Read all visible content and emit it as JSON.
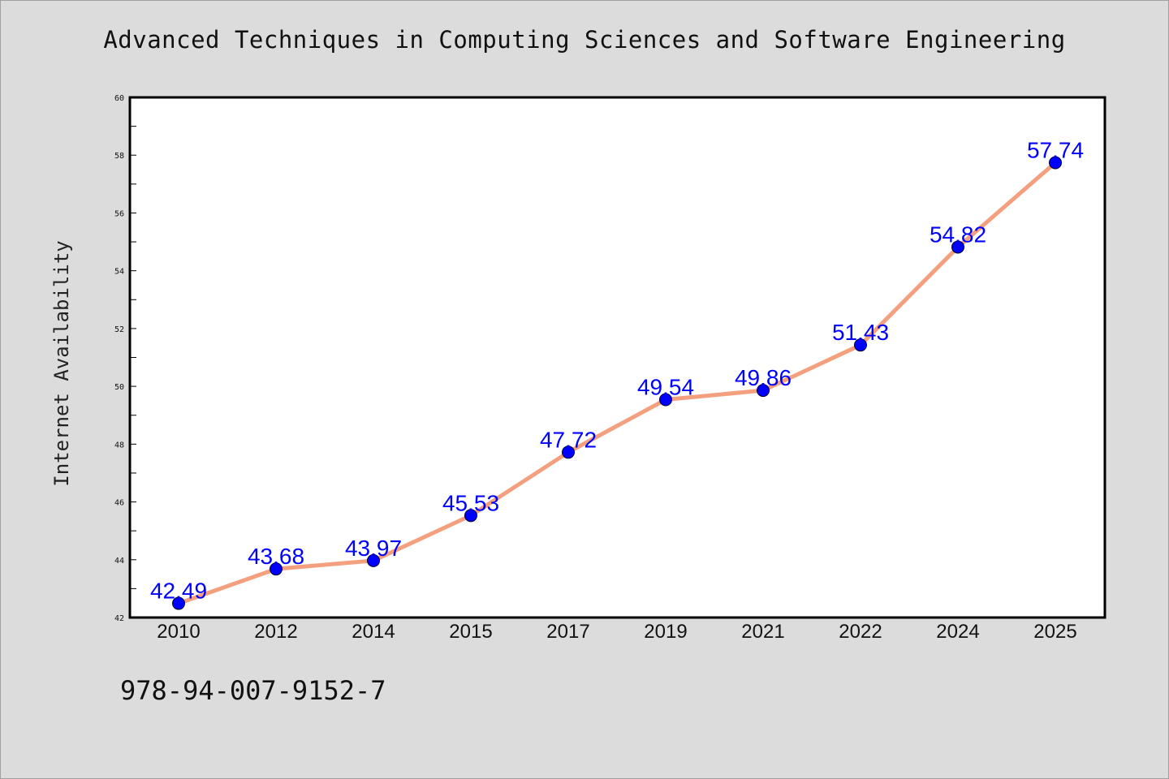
{
  "title": "Advanced Techniques in Computing Sciences and Software Engineering",
  "isbn": "978-94-007-9152-7",
  "colors": {
    "background": "#dcdcdc",
    "plot_background": "#ffffff",
    "line": "#f4a07e",
    "marker": "#0000ff",
    "data_label": "#0000ff"
  },
  "chart_data": {
    "type": "line",
    "title": "Advanced Techniques in Computing Sciences and Software Engineering",
    "xlabel": "",
    "ylabel": "Internet Availability",
    "categories": [
      "2010",
      "2012",
      "2014",
      "2015",
      "2017",
      "2019",
      "2021",
      "2022",
      "2024",
      "2025"
    ],
    "series": [
      {
        "values": [
          42.49,
          43.68,
          43.97,
          45.53,
          47.72,
          49.54,
          49.86,
          51.43,
          54.82,
          57.74
        ]
      }
    ],
    "data_labels": [
      "42.49",
      "43.68",
      "43.97",
      "45.53",
      "47.72",
      "49.54",
      "49.86",
      "51.43",
      "54.82",
      "57.74"
    ],
    "ylim": [
      42,
      60
    ],
    "yticks": [
      42,
      44,
      46,
      48,
      50,
      52,
      54,
      56,
      58,
      60
    ],
    "grid": false,
    "legend": "none"
  }
}
